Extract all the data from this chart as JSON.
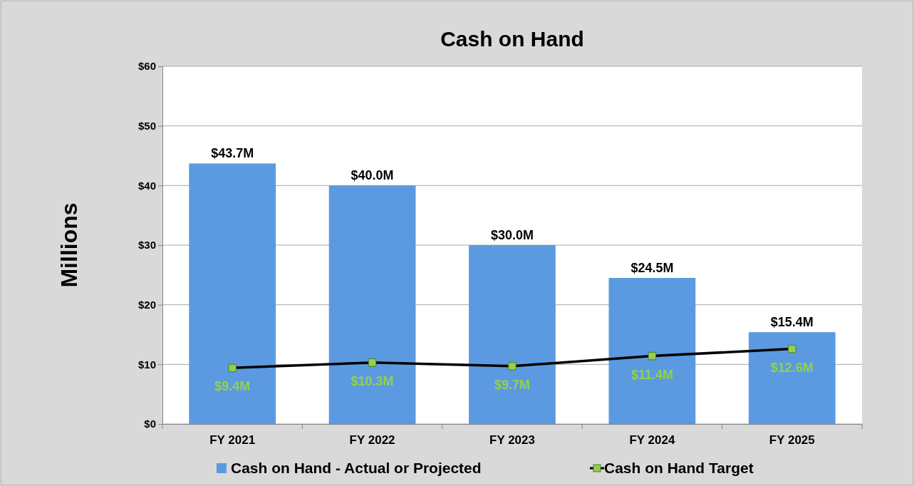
{
  "chart_data": {
    "type": "bar",
    "title": "Cash on Hand",
    "ylabel": "Millions",
    "categories": [
      "FY 2021",
      "FY 2022",
      "FY 2023",
      "FY 2024",
      "FY 2025"
    ],
    "series": [
      {
        "name": "Cash on Hand - Actual or Projected",
        "color": "#5b9ae0",
        "values": [
          43.7,
          40.0,
          30.0,
          24.5,
          15.4
        ],
        "value_labels": [
          "$43.7M",
          "$40.0M",
          "$30.0M",
          "$24.5M",
          "$15.4M"
        ]
      },
      {
        "name": "Cash on Hand Target",
        "type": "line",
        "color": "#92d050",
        "marker": "square",
        "values": [
          9.4,
          10.3,
          9.7,
          11.4,
          12.6
        ],
        "value_labels": [
          "$9.4M",
          "$10.3M",
          "$9.7M",
          "$11.4M",
          "$12.6M"
        ]
      }
    ],
    "ylim": [
      0,
      60
    ],
    "yticks": [
      {
        "value": 0,
        "label": "$0"
      },
      {
        "value": 10,
        "label": "$10"
      },
      {
        "value": 20,
        "label": "$20"
      },
      {
        "value": 30,
        "label": "$30"
      },
      {
        "value": 40,
        "label": "$40"
      },
      {
        "value": 50,
        "label": "$50"
      },
      {
        "value": 60,
        "label": "$60"
      }
    ],
    "grid": "y",
    "legend": "bottom"
  }
}
